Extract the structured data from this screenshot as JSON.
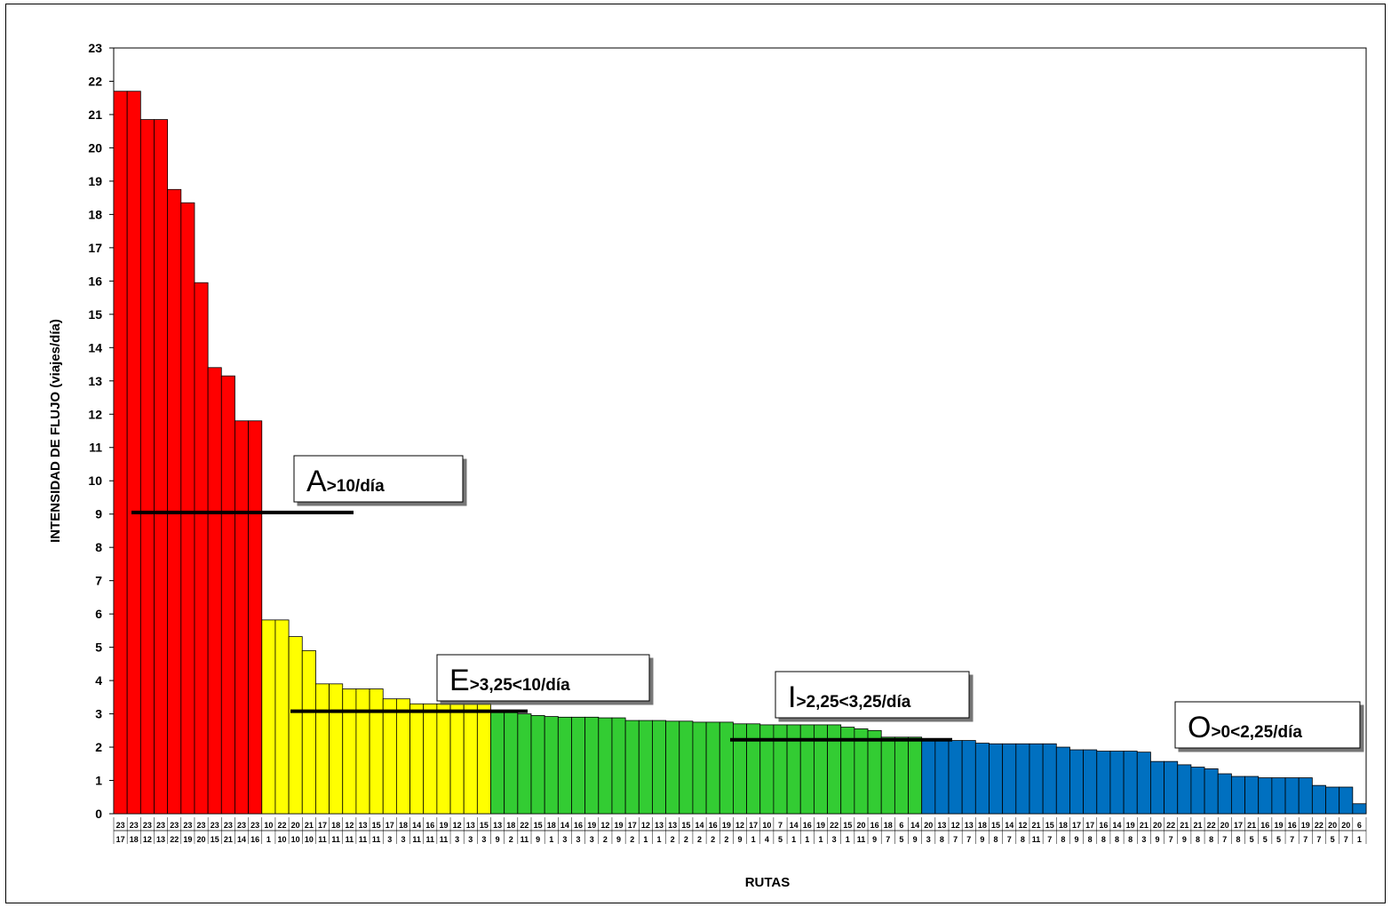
{
  "chart_data": {
    "type": "bar",
    "title": "",
    "xlabel": "RUTAS",
    "ylabel": "INTENSIDAD DE FLUJO (viajes/día)",
    "ylim": [
      0,
      23
    ],
    "yticks": [
      "0",
      "1",
      "2",
      "3",
      "4",
      "5",
      "6",
      "7",
      "8",
      "9",
      "10",
      "11",
      "12",
      "13",
      "14",
      "15",
      "16",
      "17",
      "18",
      "19",
      "20",
      "21",
      "22",
      "23"
    ],
    "grid": false,
    "categories": [
      "23-17",
      "23-18",
      "23-12",
      "23-13",
      "23-22",
      "23-19",
      "23-20",
      "23-15",
      "23-21",
      "23-14",
      "23-16",
      "10-1",
      "22-10",
      "20-10",
      "21-10",
      "17-11",
      "18-11",
      "12-11",
      "13-11",
      "15-11",
      "17-3",
      "18-3",
      "14-11",
      "16-11",
      "19-11",
      "12-3",
      "13-3",
      "15-3",
      "13-9",
      "18-2",
      "22-11",
      "15-9",
      "18-1",
      "14-3",
      "16-3",
      "19-3",
      "12-2",
      "19-9",
      "17-2",
      "12-1",
      "13-1",
      "13-2",
      "15-2",
      "14-2",
      "16-2",
      "19-2",
      "12-9",
      "17-1",
      "10-4",
      "7-5",
      "14-1",
      "16-1",
      "19-1",
      "22-3",
      "15-1",
      "20-11",
      "16-9",
      "18-7",
      "6-5",
      "14-9",
      "20-3",
      "13-8",
      "12-7",
      "13-7",
      "18-9",
      "15-8",
      "14-7",
      "12-8",
      "21-11",
      "15-7",
      "18-8",
      "17-9",
      "17-8",
      "16-8",
      "14-8",
      "19-8",
      "21-3",
      "20-9",
      "22-7",
      "21-9",
      "21-8",
      "22-8",
      "20-7",
      "17-8",
      "21-5",
      "16-5",
      "19-5",
      "16-7",
      "19-7",
      "22-7",
      "20-5",
      "20-7",
      "6-1"
    ],
    "values": [
      21.7,
      21.7,
      20.85,
      20.85,
      18.75,
      18.35,
      15.95,
      13.4,
      13.15,
      11.8,
      11.8,
      5.82,
      5.82,
      5.32,
      4.9,
      3.9,
      3.9,
      3.75,
      3.75,
      3.75,
      3.45,
      3.45,
      3.3,
      3.3,
      3.3,
      3.3,
      3.3,
      3.3,
      3.08,
      3.08,
      3.0,
      2.95,
      2.92,
      2.9,
      2.9,
      2.9,
      2.88,
      2.88,
      2.8,
      2.8,
      2.8,
      2.78,
      2.78,
      2.75,
      2.75,
      2.75,
      2.7,
      2.7,
      2.67,
      2.67,
      2.67,
      2.67,
      2.67,
      2.67,
      2.6,
      2.55,
      2.5,
      2.3,
      2.3,
      2.3,
      2.2,
      2.2,
      2.2,
      2.2,
      2.12,
      2.1,
      2.1,
      2.1,
      2.1,
      2.1,
      2.0,
      1.92,
      1.92,
      1.88,
      1.88,
      1.88,
      1.85,
      1.57,
      1.57,
      1.47,
      1.4,
      1.35,
      1.2,
      1.12,
      1.12,
      1.08,
      1.08,
      1.08,
      1.08,
      0.85,
      0.8,
      0.8,
      0.3
    ],
    "groups": [
      {
        "label": "A",
        "detail": ">10/día",
        "color": "#ff0000",
        "start": 0,
        "end": 10,
        "line_y": 9.05
      },
      {
        "label": "E",
        "detail": ">3,25<10/día",
        "color": "#ffff00",
        "start": 11,
        "end": 27,
        "line_y": 3.08
      },
      {
        "label": "I",
        "detail": ">2,25<3,25/día",
        "color": "#33cc33",
        "start": 28,
        "end": 59,
        "line_y": 2.22
      },
      {
        "label": "O",
        "detail": ">0<2,25/día",
        "color": "#0070c0",
        "start": 60,
        "end": 92,
        "line_y": null
      }
    ]
  }
}
